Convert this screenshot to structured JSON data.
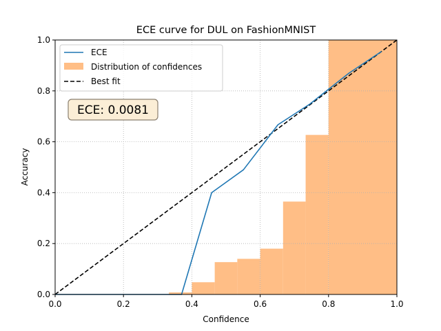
{
  "chart_data": {
    "type": "line",
    "title": "ECE curve for DUL on FashionMNIST",
    "xlabel": "Confidence",
    "ylabel": "Accuracy",
    "xlim": [
      0,
      1
    ],
    "ylim": [
      0,
      1
    ],
    "grid": true,
    "legend_position": "top-left",
    "x_ticks": [
      "0.0",
      "0.2",
      "0.4",
      "0.6",
      "0.8",
      "1.0"
    ],
    "y_ticks": [
      "0.0",
      "0.2",
      "0.4",
      "0.6",
      "0.8",
      "1.0"
    ],
    "series": [
      {
        "name": "ECE",
        "type": "line",
        "color": "#1f77b4",
        "x": [
          0.0,
          0.1,
          0.2,
          0.3,
          0.37,
          0.458,
          0.551,
          0.652,
          0.745,
          0.858,
          0.955
        ],
        "y": [
          0.0,
          0.0,
          0.0,
          0.0,
          0.0,
          0.4,
          0.49,
          0.667,
          0.748,
          0.868,
          0.955
        ]
      },
      {
        "name": "Distribution of confidences",
        "type": "bar",
        "color": "#ffbe86",
        "bins": [
          {
            "start": 0.333,
            "end": 0.4,
            "value": 0.008
          },
          {
            "start": 0.4,
            "end": 0.467,
            "value": 0.048
          },
          {
            "start": 0.467,
            "end": 0.533,
            "value": 0.127
          },
          {
            "start": 0.533,
            "end": 0.6,
            "value": 0.14
          },
          {
            "start": 0.6,
            "end": 0.667,
            "value": 0.18
          },
          {
            "start": 0.667,
            "end": 0.733,
            "value": 0.365
          },
          {
            "start": 0.733,
            "end": 0.8,
            "value": 0.627
          },
          {
            "start": 0.8,
            "end": 1.0,
            "value": 1.0
          }
        ]
      },
      {
        "name": "Best fit",
        "type": "line",
        "style": "dashed",
        "color": "#000000",
        "x": [
          0,
          1
        ],
        "y": [
          0,
          1
        ]
      }
    ],
    "annotation": {
      "text": "ECE: 0.0081",
      "bg_color": "#fbeed6",
      "border_color": "#8a7f6f"
    }
  }
}
